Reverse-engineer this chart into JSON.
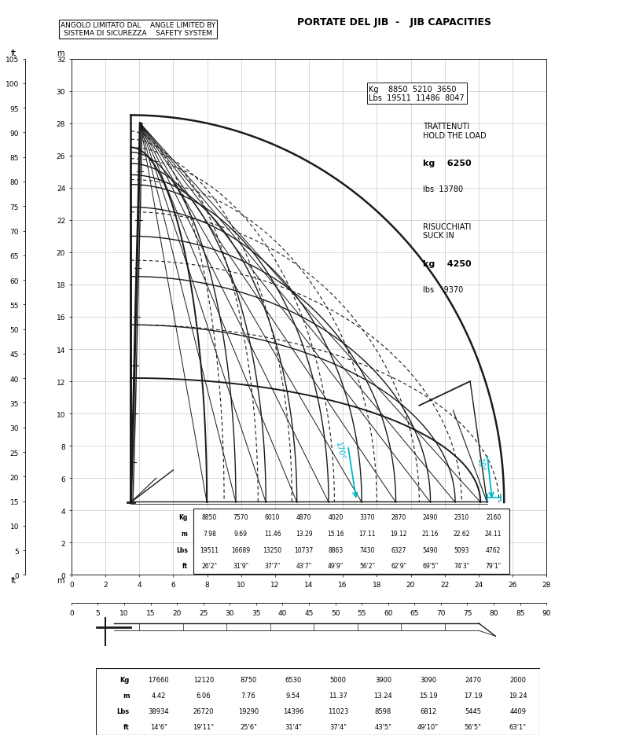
{
  "title": "PORTATE DEL JIB  -   JIB CAPACITIES",
  "box_label_it": "ANGOLO LIMITATO DAL    ANGLE LIMITED BY",
  "box_label_en": "SISTEMA DI SICUREZZA    SAFETY SYSTEM",
  "hold_line1": "TRATTENUTI",
  "hold_line2": "HOLD THE LOAD",
  "hold_kg_val": "6250",
  "hold_lbs_val": "13780",
  "suckin_line1": "RISUCCHIATI",
  "suckin_line2": "SUCK IN",
  "suckin_kg_val": "4250",
  "suckin_lbs_val": "9370",
  "jib_kg": [
    8850,
    5210,
    3650
  ],
  "jib_lbs": [
    19511,
    11486,
    8047
  ],
  "table1_kg": [
    8850,
    7570,
    6010,
    4870,
    4020,
    3370,
    2870,
    2490,
    2310,
    2160
  ],
  "table1_m": [
    "7.98",
    "9.69",
    "11.46",
    "13.29",
    "15.16",
    "17.11",
    "19.12",
    "21.16",
    "22.62",
    "24.11"
  ],
  "table1_lbs": [
    19511,
    16689,
    13250,
    10737,
    8863,
    7430,
    6327,
    5490,
    5093,
    4762
  ],
  "table1_ft": [
    "26'2\"",
    "31'9\"",
    "37'7\"",
    "43'7\"",
    "49'9\"",
    "56'2\"",
    "62'9\"",
    "69'5\"",
    "74'3\"",
    "79'1\""
  ],
  "table2_kg": [
    17660,
    12120,
    8750,
    6530,
    5000,
    3900,
    3090,
    2470,
    2000
  ],
  "table2_m": [
    "4.42",
    "6.06",
    "7.76",
    "9.54",
    "11.37",
    "13.24",
    "15.19",
    "17.19",
    "19.24"
  ],
  "table2_lbs": [
    38934,
    26720,
    19290,
    14396,
    11023,
    8598,
    6812,
    5445,
    4409
  ],
  "table2_ft": [
    "14'6\"",
    "19'11\"",
    "25'6\"",
    "31'4\"",
    "37'4\"",
    "43'5\"",
    "49'10\"",
    "56'5\"",
    "63'1\""
  ],
  "lc": "#1a1a1a",
  "cyan": "#00b8c8",
  "axis_m_y": [
    0,
    2,
    4,
    6,
    8,
    10,
    12,
    14,
    16,
    18,
    20,
    22,
    24,
    26,
    28,
    30,
    32
  ],
  "axis_ft_y": [
    0,
    5,
    10,
    15,
    20,
    25,
    30,
    35,
    40,
    45,
    50,
    55,
    60,
    65,
    70,
    75,
    80,
    85,
    90,
    95,
    100,
    105
  ],
  "axis_m_x": [
    0,
    2,
    4,
    6,
    8,
    10,
    12,
    14,
    16,
    18,
    20,
    22,
    24,
    26,
    28
  ],
  "axis_ft_x": [
    0,
    5,
    10,
    15,
    20,
    25,
    30,
    35,
    40,
    45,
    50,
    55,
    60,
    65,
    70,
    75,
    80,
    85,
    90
  ]
}
